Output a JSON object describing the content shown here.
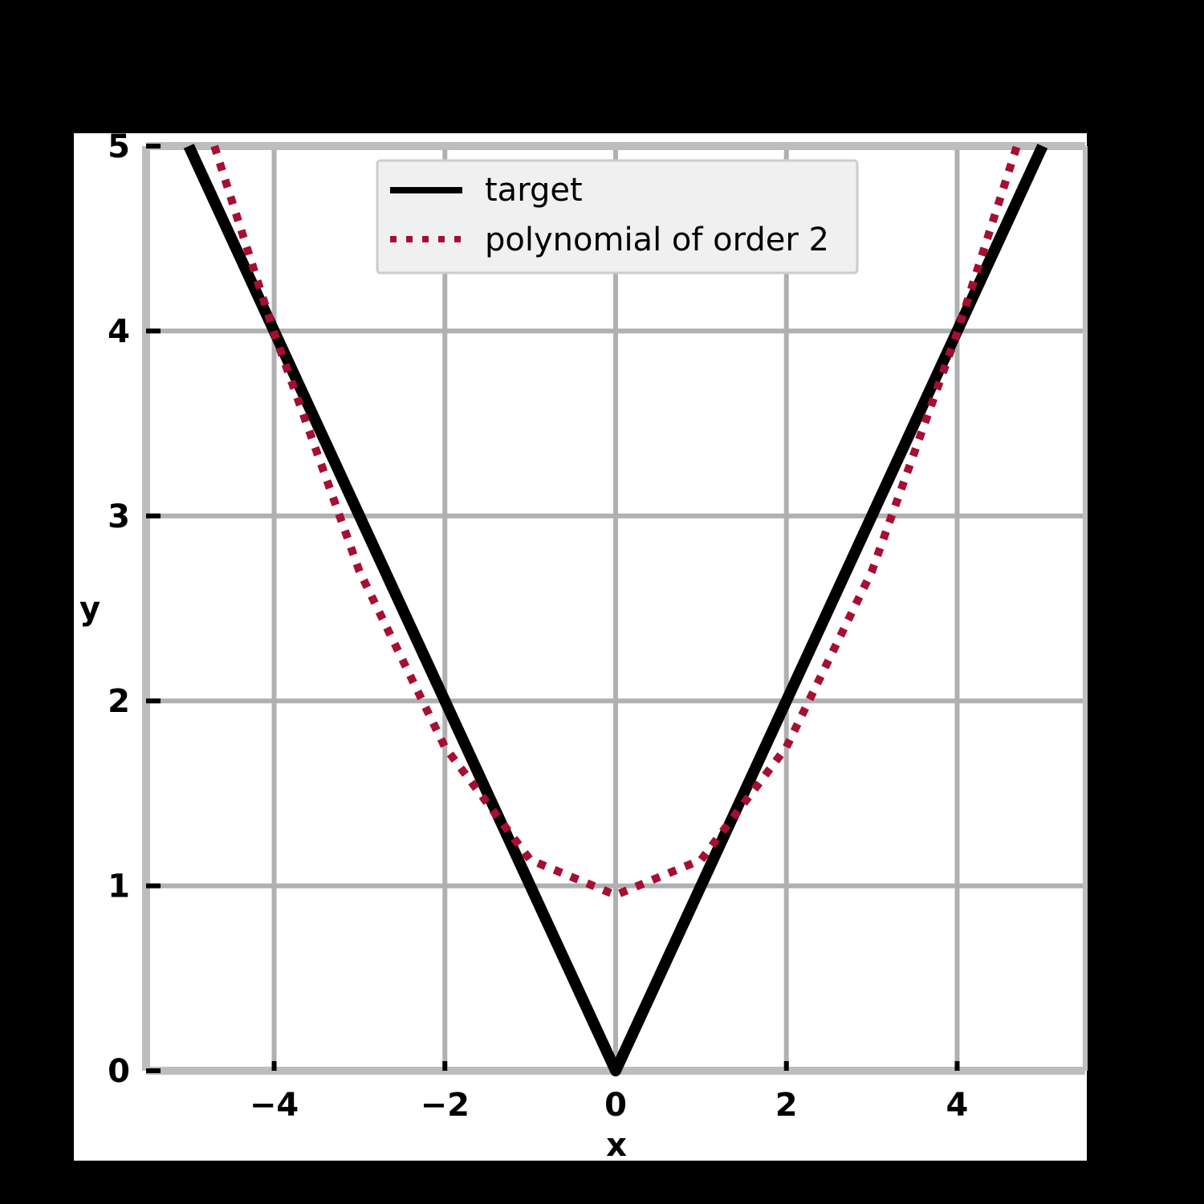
{
  "chart_data": {
    "type": "line",
    "title": "",
    "xlabel": "x",
    "ylabel": "y",
    "xlim": [
      -5.5,
      5.5
    ],
    "ylim": [
      0,
      5
    ],
    "x_ticks": [
      -4,
      -2,
      0,
      2,
      4
    ],
    "x_tick_labels": [
      "−4",
      "−2",
      "0",
      "2",
      "4"
    ],
    "y_ticks": [
      0,
      1,
      2,
      3,
      4,
      5
    ],
    "y_tick_labels": [
      "0",
      "1",
      "2",
      "3",
      "4",
      "5"
    ],
    "grid": true,
    "legend_position": "top-center",
    "series": [
      {
        "name": "target",
        "color": "#000000",
        "style": "solid",
        "x": [
          -5.0,
          -4.0,
          -3.0,
          -2.0,
          -1.0,
          0.0,
          1.0,
          2.0,
          3.0,
          4.0,
          5.0
        ],
        "y": [
          5.0,
          4.0,
          3.0,
          2.0,
          1.0,
          0.0,
          1.0,
          2.0,
          3.0,
          4.0,
          5.0
        ]
      },
      {
        "name": "polynomial of order 2",
        "color": "#A50F34",
        "style": "dotted",
        "x": [
          -4.7,
          -4.0,
          -3.0,
          -2.0,
          -1.0,
          0.0,
          1.0,
          2.0,
          3.0,
          4.0,
          4.7
        ],
        "y": [
          5.0,
          3.99,
          2.7,
          1.75,
          1.14,
          0.95,
          1.14,
          1.75,
          2.7,
          3.99,
          5.0
        ]
      }
    ]
  }
}
